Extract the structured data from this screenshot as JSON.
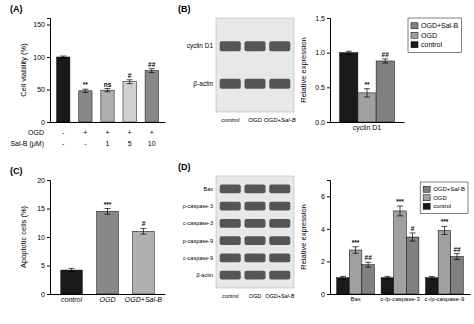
{
  "chart_data": [
    {
      "type": "bar",
      "title": "(A)",
      "categories": [
        [
          "-",
          "-"
        ],
        [
          "+",
          "-"
        ],
        [
          "+",
          "1"
        ],
        [
          "+",
          "5"
        ],
        [
          "+",
          "10"
        ]
      ],
      "xlabel": [
        "OGD",
        "Sal-B (μM)"
      ],
      "values": [
        100,
        48,
        49,
        62,
        79
      ],
      "errors": [
        1.5,
        2.5,
        2.5,
        3.0,
        3.0
      ],
      "colors": [
        "#1a1a1a",
        "#888888",
        "#b0b0b0",
        "#d0d0d0",
        "#888888"
      ],
      "ylabel": "Cell viability (%)",
      "ylim": [
        0,
        160
      ],
      "yticks": [
        0,
        50,
        100,
        150
      ],
      "annotations": [
        null,
        "**",
        "ns",
        "#",
        "##"
      ]
    },
    {
      "type": "blot",
      "title": "(B)",
      "categories": [
        "control",
        "OGD",
        "OGD+Sal-B"
      ],
      "series": [
        {
          "name": "cyclin D1"
        },
        {
          "name": "β-actin"
        }
      ]
    },
    {
      "type": "bar",
      "categories": [
        "cyclin D1"
      ],
      "series": [
        {
          "name": "control",
          "color": "#1a1a1a",
          "values": [
            1.0
          ],
          "errors": [
            0.02
          ]
        },
        {
          "name": "OGD",
          "color": "#a0a0a0",
          "values": [
            0.42
          ],
          "errors": [
            0.06
          ],
          "annotations": [
            "**"
          ]
        },
        {
          "name": "OGD+Sal-B",
          "color": "#808080",
          "values": [
            0.88
          ],
          "errors": [
            0.03
          ],
          "annotations": [
            "##"
          ]
        }
      ],
      "ylabel": "Relative expression",
      "ylim": [
        0,
        1.5
      ],
      "yticks": [
        {
          "value": 0,
          "label": "0.0"
        },
        0.5,
        {
          "value": 1,
          "label": "1.0"
        },
        1.5
      ],
      "legend": "right"
    },
    {
      "type": "bar",
      "title": "(C)",
      "categories": [
        "control",
        "OGD",
        "OGD+Sal-B"
      ],
      "values": [
        4.2,
        14.5,
        11.0
      ],
      "errors": [
        0.3,
        0.5,
        0.5
      ],
      "colors": [
        "#1a1a1a",
        "#888888",
        "#b0b0b0"
      ],
      "ylabel": "Apoptotic cells (%)",
      "ylim": [
        0,
        20
      ],
      "yticks": [
        0,
        5,
        10,
        15,
        20
      ],
      "annotations": [
        null,
        "***",
        "#"
      ]
    },
    {
      "type": "blot",
      "title": "(D)",
      "categories": [
        "control",
        "OGD",
        "OGD+Sal-B"
      ],
      "series": [
        {
          "name": "Bax"
        },
        {
          "name": "p-caspase-3"
        },
        {
          "name": "c-caspase-3"
        },
        {
          "name": "p-caspase-9"
        },
        {
          "name": "c-caspase-9"
        },
        {
          "name": "β-actin"
        }
      ]
    },
    {
      "type": "bar",
      "categories": [
        "Bax",
        "c-/p-caspase-3",
        "c-/p-caspase-9"
      ],
      "series": [
        {
          "name": "control",
          "color": "#1a1a1a",
          "values": [
            1.0,
            1.0,
            1.0
          ],
          "errors": [
            0.08,
            0.08,
            0.08
          ]
        },
        {
          "name": "OGD",
          "color": "#a0a0a0",
          "values": [
            2.7,
            5.1,
            3.9
          ],
          "errors": [
            0.2,
            0.3,
            0.25
          ],
          "annotations": [
            "***",
            "***",
            "***"
          ]
        },
        {
          "name": "OGD+Sal-B",
          "color": "#808080",
          "values": [
            1.8,
            3.5,
            2.3
          ],
          "errors": [
            0.15,
            0.25,
            0.18
          ],
          "annotations": [
            "##",
            "#",
            "##"
          ]
        }
      ],
      "ylabel": "Relative expression",
      "ylim": [
        0,
        7
      ],
      "yticks": [
        0,
        2,
        4,
        6
      ],
      "legend": "upper right"
    }
  ]
}
